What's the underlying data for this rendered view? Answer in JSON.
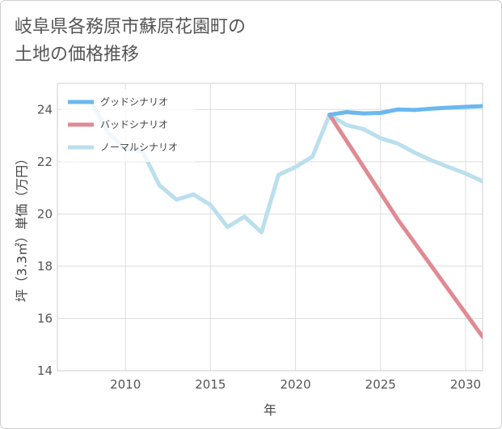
{
  "title_line1": "岐阜県各務原市蘇原花園町の",
  "title_line2": "土地の価格推移",
  "chart_data": {
    "type": "line",
    "xlabel": "年",
    "ylabel": "坪（3.3㎡）単価（万円）",
    "xlim": [
      2006,
      2031
    ],
    "ylim": [
      14,
      25
    ],
    "xticks": [
      2010,
      2015,
      2020,
      2025,
      2030
    ],
    "yticks": [
      14,
      16,
      18,
      20,
      22,
      24
    ],
    "grid": true,
    "legend_position": "top-left",
    "series": [
      {
        "name": "グッドシナリオ",
        "color": "#6bb8ee",
        "x": [
          2022,
          2023,
          2024,
          2025,
          2026,
          2027,
          2028,
          2029,
          2030,
          2031
        ],
        "values": [
          23.8,
          23.9,
          23.85,
          23.87,
          24.0,
          23.98,
          24.03,
          24.07,
          24.1,
          24.13
        ]
      },
      {
        "name": "バッドシナリオ",
        "color": "#e08a94",
        "x": [
          2022,
          2023,
          2024,
          2025,
          2026,
          2027,
          2028,
          2029,
          2030,
          2031
        ],
        "values": [
          23.8,
          22.8,
          21.8,
          20.8,
          19.8,
          18.9,
          18.0,
          17.1,
          16.2,
          15.3
        ]
      },
      {
        "name": "ノーマルシナリオ",
        "color": "#badfed",
        "x": [
          2008,
          2009,
          2010,
          2011,
          2012,
          2013,
          2014,
          2015,
          2016,
          2017,
          2018,
          2019,
          2020,
          2021,
          2022,
          2023,
          2024,
          2025,
          2026,
          2027,
          2028,
          2029,
          2030,
          2031
        ],
        "values": [
          24.3,
          23.1,
          22.5,
          22.4,
          21.1,
          20.55,
          20.75,
          20.35,
          19.5,
          19.9,
          19.3,
          21.5,
          21.8,
          22.2,
          23.8,
          23.4,
          23.25,
          22.9,
          22.7,
          22.35,
          22.05,
          21.8,
          21.55,
          21.25
        ]
      }
    ]
  }
}
